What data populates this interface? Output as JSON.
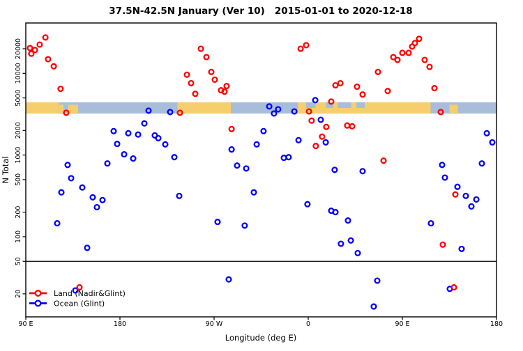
{
  "title": "37.5N-42.5N January (Ver 10)   2015-01-01 to 2020-12-18",
  "axes": {
    "y": {
      "label": "N Total",
      "scale": "log",
      "tick_values": [
        20,
        50,
        100,
        200,
        500,
        1000,
        2000,
        5000,
        10000,
        20000
      ],
      "tick_labels": [
        "20",
        "50",
        "100",
        "200",
        "500",
        "1000",
        "2000",
        "5000",
        "10000",
        "20000"
      ]
    },
    "x": {
      "label": "Longitude (deg E)",
      "tick_values": [
        90,
        180,
        270,
        360,
        450,
        540
      ],
      "tick_labels": [
        "90 E",
        "180",
        "90 W",
        "0",
        "90 E",
        "180"
      ]
    }
  },
  "legend": {
    "items": [
      {
        "label": "Land (Nadir&Glint)",
        "color": "#FF0000"
      },
      {
        "label": "Ocean (Glint)",
        "color": "#0000FF"
      }
    ]
  },
  "colors": {
    "land_point": "#FF0000",
    "ocean_point": "#0000FF",
    "band_land": "#F7CE6E",
    "band_ocean": "#A7BDDA",
    "axis": "#000000"
  },
  "chart_data": {
    "type": "scatter",
    "title": "37.5N-42.5N January (Ver 10)   2015-01-01 to 2020-12-18",
    "xlabel": "Longitude (deg E)",
    "ylabel": "N Total",
    "x_domain": [
      90,
      540
    ],
    "y_domain": [
      10.4,
      41000
    ],
    "y_scale": "log",
    "grid": false,
    "reference_line_y": 50,
    "band": {
      "description": "land/ocean mask strip along longitude",
      "value_top": 4420,
      "value_bottom": 3220,
      "land_segments": [
        {
          "lon_range": [
            90,
            121.5
          ],
          "coverage": "full"
        },
        {
          "lon_range": [
            121.8,
            126
          ],
          "coverage": "partial"
        },
        {
          "lon_range": [
            130.5,
            140
          ],
          "coverage": "partial"
        },
        {
          "lon_range": [
            235,
            286
          ],
          "coverage": "full"
        },
        {
          "lon_range": [
            350,
            477
          ],
          "coverage": "full"
        },
        {
          "lon_range": [
            495,
            503
          ],
          "coverage": "partial"
        }
      ],
      "ocean_patches": [
        [
          358,
          367
        ],
        [
          377,
          384
        ],
        [
          388,
          401
        ],
        [
          406,
          414
        ]
      ]
    },
    "series": [
      {
        "name": "Ocean (Glint)",
        "color": "#0000FF",
        "points": [
          [
            207.3,
            3490
          ],
          [
            228,
            3360
          ],
          [
            203.3,
            2440
          ],
          [
            174,
            1960
          ],
          [
            188,
            1850
          ],
          [
            197.3,
            1780
          ],
          [
            213.3,
            1740
          ],
          [
            216.7,
            1610
          ],
          [
            223.3,
            1350
          ],
          [
            177.3,
            1370
          ],
          [
            184,
            1020
          ],
          [
            192.7,
            906
          ],
          [
            232,
            942
          ],
          [
            168,
            789
          ],
          [
            130,
            757
          ],
          [
            133.3,
            520
          ],
          [
            144,
            401
          ],
          [
            124,
            349
          ],
          [
            154,
            304
          ],
          [
            163.3,
            281
          ],
          [
            158,
            230
          ],
          [
            120,
            146
          ],
          [
            148.7,
            73
          ],
          [
            137.3,
            22
          ],
          [
            236.7,
            316
          ],
          [
            273.3,
            152
          ],
          [
            299.3,
            137
          ],
          [
            308,
            349
          ],
          [
            300.7,
            685
          ],
          [
            310.7,
            1350
          ],
          [
            317.3,
            1960
          ],
          [
            286.7,
            1170
          ],
          [
            292,
            743
          ],
          [
            336.7,
            925
          ],
          [
            341.3,
            942
          ],
          [
            350.7,
            1520
          ],
          [
            385.3,
            659
          ],
          [
            322.7,
            3940
          ],
          [
            331.3,
            3630
          ],
          [
            327.3,
            3230
          ],
          [
            346.7,
            3420
          ],
          [
            366.7,
            4700
          ],
          [
            372,
            2700
          ],
          [
            376.7,
            1430
          ],
          [
            386,
            200
          ],
          [
            398,
            158
          ],
          [
            391.3,
            82
          ],
          [
            400.7,
            90
          ],
          [
            407.3,
            63
          ],
          [
            412,
            634
          ],
          [
            359.3,
            250
          ],
          [
            382,
            208
          ],
          [
            284,
            30
          ],
          [
            426,
            29
          ],
          [
            422.7,
            14
          ],
          [
            495.3,
            23
          ],
          [
            490.7,
            530
          ],
          [
            502.7,
            409
          ],
          [
            510.7,
            316
          ],
          [
            520.7,
            286
          ],
          [
            516,
            235
          ],
          [
            477.3,
            146
          ],
          [
            506.7,
            71
          ],
          [
            530.7,
            1850
          ],
          [
            536,
            1430
          ],
          [
            526,
            789
          ],
          [
            488,
            757
          ]
        ]
      },
      {
        "name": "Land (Nadir&Glint)",
        "color": "#FF0000",
        "points": [
          [
            108.7,
            27500
          ],
          [
            103.3,
            22500
          ],
          [
            94,
            20400
          ],
          [
            98.7,
            19300
          ],
          [
            95.3,
            17400
          ],
          [
            111.3,
            14900
          ],
          [
            116.7,
            12200
          ],
          [
            123.3,
            6470
          ],
          [
            128.7,
            3290
          ],
          [
            141.3,
            24
          ],
          [
            237.3,
            3290
          ],
          [
            257.3,
            20000
          ],
          [
            262.7,
            15800
          ],
          [
            267.3,
            10400
          ],
          [
            270.7,
            8360
          ],
          [
            244,
            9610
          ],
          [
            248,
            7580
          ],
          [
            252,
            5620
          ],
          [
            276.7,
            6210
          ],
          [
            282,
            7000
          ],
          [
            280,
            5970
          ],
          [
            286.7,
            2080
          ],
          [
            352.7,
            20000
          ],
          [
            358,
            22100
          ],
          [
            360.7,
            3420
          ],
          [
            363.3,
            2640
          ],
          [
            377.3,
            2210
          ],
          [
            373.3,
            1680
          ],
          [
            367.3,
            1290
          ],
          [
            382,
            4520
          ],
          [
            386,
            7130
          ],
          [
            390.7,
            7570
          ],
          [
            397.3,
            2300
          ],
          [
            402,
            2250
          ],
          [
            406.7,
            6860
          ],
          [
            412,
            5510
          ],
          [
            426.7,
            10400
          ],
          [
            436,
            6080
          ],
          [
            432,
            853
          ],
          [
            441.3,
            15800
          ],
          [
            445.3,
            14600
          ],
          [
            450,
            17800
          ],
          [
            456,
            17800
          ],
          [
            459.3,
            21300
          ],
          [
            462,
            23500
          ],
          [
            466,
            26500
          ],
          [
            471.3,
            14600
          ],
          [
            476,
            12000
          ],
          [
            480.7,
            6590
          ],
          [
            486.7,
            3360
          ],
          [
            500.7,
            329
          ],
          [
            488.7,
            80
          ],
          [
            499.3,
            24
          ]
        ]
      }
    ]
  }
}
